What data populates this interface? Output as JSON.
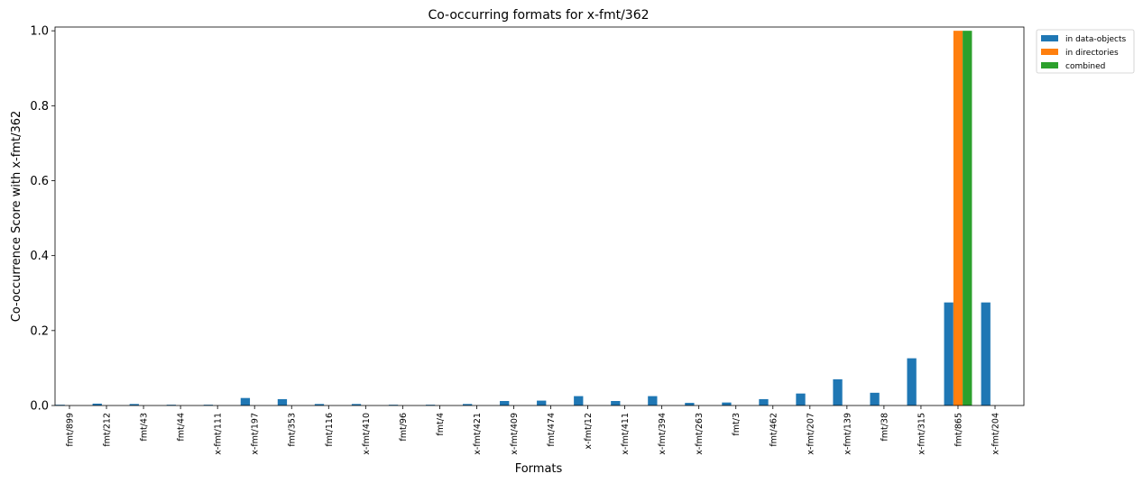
{
  "chart_data": {
    "type": "bar",
    "title": "Co-occurring formats for x-fmt/362",
    "xlabel": "Formats",
    "ylabel": "Co-occurrence Score with x-fmt/362",
    "ylim": [
      0,
      1.01
    ],
    "yticks": [
      "0.0",
      "0.2",
      "0.4",
      "0.6",
      "0.8",
      "1.0"
    ],
    "grid": false,
    "legend_position": "outside top-right",
    "categories": [
      "fmt/899",
      "fmt/212",
      "fmt/43",
      "fmt/44",
      "x-fmt/111",
      "x-fmt/197",
      "fmt/353",
      "fmt/116",
      "x-fmt/410",
      "fmt/96",
      "fmt/4",
      "x-fmt/421",
      "x-fmt/409",
      "fmt/474",
      "x-fmt/12",
      "x-fmt/411",
      "x-fmt/394",
      "x-fmt/263",
      "fmt/3",
      "fmt/462",
      "x-fmt/207",
      "x-fmt/139",
      "fmt/38",
      "x-fmt/315",
      "fmt/865",
      "x-fmt/204"
    ],
    "series": [
      {
        "name": "in data-objects",
        "color": "#1f77b4",
        "values": [
          0.002,
          0.005,
          0.004,
          0.002,
          0.002,
          0.02,
          0.017,
          0.004,
          0.004,
          0.002,
          0.002,
          0.004,
          0.012,
          0.013,
          0.025,
          0.012,
          0.025,
          0.007,
          0.008,
          0.017,
          0.032,
          0.07,
          0.034,
          0.126,
          0.275,
          0.275
        ]
      },
      {
        "name": "in directories",
        "color": "#ff7f0e",
        "values": [
          0,
          0,
          0,
          0,
          0,
          0,
          0,
          0,
          0,
          0,
          0,
          0,
          0,
          0,
          0,
          0,
          0,
          0,
          0,
          0,
          0,
          0,
          0,
          0,
          1.0,
          0
        ]
      },
      {
        "name": "combined",
        "color": "#2ca02c",
        "values": [
          0,
          0,
          0,
          0,
          0,
          0,
          0,
          0,
          0,
          0,
          0,
          0,
          0,
          0,
          0,
          0,
          0,
          0,
          0,
          0,
          0,
          0,
          0,
          0,
          1.0,
          0
        ]
      }
    ]
  }
}
